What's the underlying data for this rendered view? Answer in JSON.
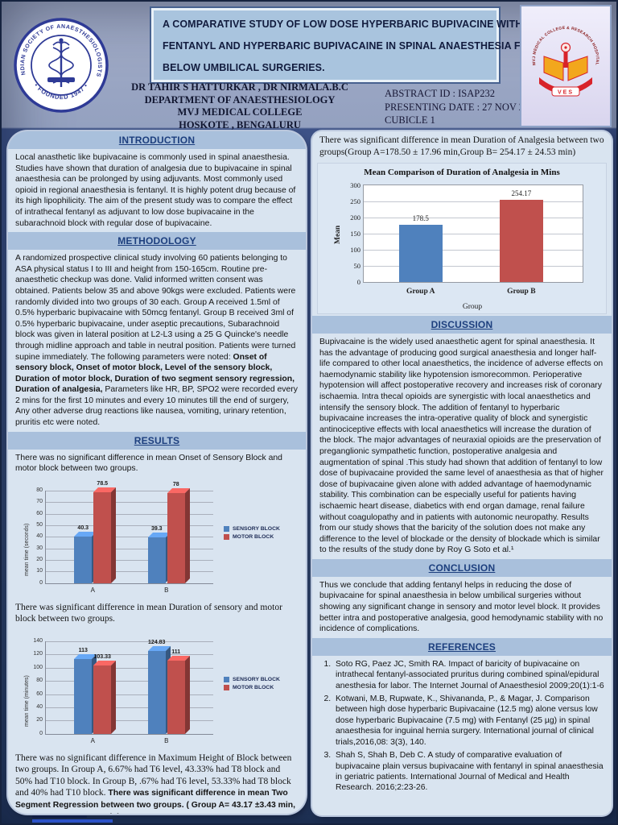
{
  "header": {
    "title_lines": [
      "A  COMPARATIVE STUDY OF LOW DOSE HYPERBARIC BUPIVACINE WITH",
      "FENTANYL AND HYPERBARIC BUPIVACAINE IN SPINAL ANAESTHESIA FOR",
      "BELOW UMBILICAL SURGERIES."
    ],
    "authors_line": "DR TAHIR S HATTURKAR , DR NIRMALA.B.C",
    "department": "DEPARTMENT OF ANAESTHESIOLOGY",
    "college": "MVJ MEDICAL COLLEGE",
    "location": "HOSKOTE , BENGALURU",
    "abstract_id": "ABSTRACT ID : ISAP232",
    "presenting_date": "PRESENTING DATE : 27  NOV 2019",
    "cubicle": "CUBICLE 1",
    "isa_logo": {
      "ring_text": "INDIAN SOCIETY OF ANAESTHESIOLOGISTS",
      "founded_text": "• FOUNDED 1947 •"
    },
    "college_logo": {
      "ring_text": "MVJ MEDICAL COLLEGE & RESEARCH HOSPITAL",
      "banner_text": "VES"
    }
  },
  "left": {
    "introduction": {
      "heading": "INTRODUCTION",
      "body": "Local anasthetic like bupivacaine is commonly used in spinal anaesthesia. Studies have shown that duration of analgesia due to bupivacaine in spinal anaesthesia can be prolonged by using adjuvants. Most commonly used opioid in regional anaesthesia is fentanyl. It is highly potent drug because of its high lipophilicity. The aim of the present study was to compare the effect of intrathecal fentanyl as adjuvant to low dose bupivacaine in the subarachnoid block with regular dose of bupivacaine."
    },
    "methodology": {
      "heading": "METHODOLOGY",
      "body_start": "A randomized prospective clinical study involving 60 patients belonging to ASA physical status I to III and height from 150-165cm. Routine pre-anaesthetic checkup was done. Valid informed written consent was obtained. Patients below 35 and above 90kgs were excluded. Patients were randomly divided into two groups of 30 each. Group A received 1.5ml of 0.5% hyperbaric bupivacaine with 50mcg fentanyl. Group B received 3ml of 0.5% hyperbaric bupivacaine, under aseptic precautions, Subarachnoid block was given in lateral position at L2-L3  using a 25 G Quincke's needle through midline approach and table in neutral position. Patients were turned supine immediately. The following parameters were noted: ",
      "body_bold": "Onset of sensory block, Onset of motor block, Level of the sensory block, Duration of motor block, Duration of two segment sensory regression, Duration of analgesia,",
      "body_end": " Parameters like HR, BP, SPO2 were recorded every 2 mins for the first 10 minutes and every 10 minutes  till the end of surgery, Any other adverse drug reactions like nausea, vomiting, urinary retention, pruritis etc were noted."
    },
    "results": {
      "heading": "RESULTS",
      "text_onset": "There was no significant difference in mean Onset of Sensory Block and motor block between two groups.",
      "text_duration": "There was significant difference in mean Duration of sensory and motor block between two groups.",
      "text_height_serif": "There was no significant difference in Maximum Height of Block between two groups. In Group A, 6.67% had T6 level, 43.33% had T8 block and 50% had T10 block. In Group B, .67% had T6 level, 53.33% had T8 block and 40% had T10 block.",
      "text_height_bold": " There was significant difference in mean Two Segment Regression between two groups. ( Group A= 43.17 ±3.43 min, Group B= 47.97 ±4.48 min)"
    }
  },
  "right": {
    "analgesia_text": "There was significant difference in mean Duration of Analgesia between two groups(Group A=178.50 ± 17.96 min,Group B= 254.17 ± 24.53 min)",
    "discussion": {
      "heading": "DISCUSSION",
      "body": "Bupivacaine is the widely used anaesthetic agent for spinal anaesthesia. It has the advantage of producing good surgical anaesthesia and  longer half-life compared to other local anaesthetics, the incidence of adverse effects on haemodynamic stability like hypotension ismorecommon. Perioperative hypotension will affect postoperative recovery  and increases risk of coronary ischaemia. Intra thecal opioids are synergistic with local anaesthetics and intensify the sensory block. The addition of fentanyl to hyperbaric bupivacaine increases the intra-operative quality of block and synergistic antinociceptive effects with local anaesthetics will increase the duration of the block. The major advantages of neuraxial opioids are the preservation of preganglionic sympathetic function, postoperative analgesia and augmentation of spinal .This study had shown that addition of fentanyl to low dose of bupivacaine provided the same level of anaesthesia as that of higher dose of bupivacaine given alone with added advantage of haemodynamic stability. This combination can be especially useful for patients having ischaemic heart disease, diabetics with end organ damage, renal failure without coagulopathy and in patients with autonomic neuropathy. Results from our study shows that the baricity of the solution does not make any difference to the level of blockade or the density of blockade which is similar to the results of the study done by Roy G Soto et al.¹"
    },
    "conclusion": {
      "heading": "CONCLUSION",
      "body": "Thus we conclude that adding fentanyl helps in reducing the dose of bupivacaine for spinal anaesthesia in below umbilical surgeries without showing any significant change in sensory and motor level block. It provides better intra and postoperative analgesia, good hemodynamic stability with no incidence of complications."
    },
    "references": {
      "heading": "REFERENCES",
      "items": [
        "Soto RG, Paez JC, Smith RA. Impact of baricity of bupivacaine on intrathecal fentanyl-associated pruritus during combined spinal/epidural anesthesia for labor. The Internet Journal of Anaesthesiol 2009;20(1):1-6",
        "Kotwani, M.B, Rupwate, K., Shivananda, P., & Magar, J. Comparison between high dose hyperbaric Bupivacaine (12.5 mg) alone versus low dose hyperbaric Bupivacaine (7.5 mg) with Fentanyl (25 µg) in spinal anaesthesia for inguinal hernia surgery. International journal of clinical trials,2016,08: 3(3), 140.",
        "Shah S, Shah B, Deb C. A study of comparative evaluation of bupivacaine plain versus bupivacaine with fentanyl in spinal anaesthesia in geriatric patients. International Journal of Medical and Health Research. 2016;2:23-26."
      ]
    }
  },
  "chart_data": [
    {
      "type": "bar",
      "style": "3d-grouped",
      "categories": [
        "A",
        "B"
      ],
      "series": [
        {
          "name": "SENSORY BLOCK",
          "color": "#4f81bd",
          "values": [
            40.3,
            39.3
          ],
          "labels": [
            "40.3",
            "39.3"
          ]
        },
        {
          "name": "MOTOR BLOCK",
          "color": "#c0504d",
          "values": [
            78.5,
            78
          ],
          "labels": [
            "78.5",
            "78"
          ]
        }
      ],
      "ylabel": "mean time (seconds)",
      "ylim": [
        0,
        80
      ],
      "ytick": 10,
      "grid": true,
      "legend_position": "right"
    },
    {
      "type": "bar",
      "style": "3d-grouped",
      "categories": [
        "A",
        "B"
      ],
      "series": [
        {
          "name": "SENSORY BLOCK",
          "color": "#4f81bd",
          "values": [
            113,
            124.83
          ],
          "labels": [
            "113",
            "124.83"
          ]
        },
        {
          "name": "MOTOR BLOCK",
          "color": "#c0504d",
          "values": [
            103.33,
            111
          ],
          "labels": [
            "103.33",
            "111"
          ]
        }
      ],
      "ylabel": "mean time (minutes)",
      "ylim": [
        0,
        140
      ],
      "ytick": 20,
      "grid": true,
      "legend_position": "right"
    },
    {
      "type": "bar",
      "style": "2d",
      "title": "Mean Comparison of  Duration of Analgesia in Mins",
      "categories": [
        "Group A",
        "Group B"
      ],
      "values": [
        178.5,
        254.17
      ],
      "labels": [
        "178.5",
        "254.17"
      ],
      "colors": [
        "#4f81bd",
        "#c0504d"
      ],
      "xlabel": "Group",
      "ylabel": "Mean",
      "ylim": [
        0,
        300
      ],
      "ytick": 50,
      "grid": true,
      "legend_position": "none"
    }
  ]
}
